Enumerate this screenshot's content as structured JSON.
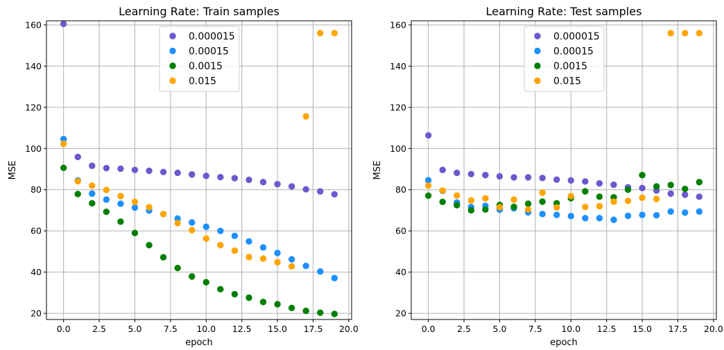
{
  "chart_data": [
    {
      "type": "scatter",
      "title": "Learning Rate: Train samples",
      "xlabel": "epoch",
      "ylabel": "MSE",
      "xlim": [
        -1.2,
        20.2
      ],
      "ylim": [
        17,
        162
      ],
      "xticks": [
        "0.0",
        "2.5",
        "5.0",
        "7.5",
        "10.0",
        "12.5",
        "15.0",
        "17.5",
        "20.0"
      ],
      "yticks": [
        "20",
        "40",
        "60",
        "80",
        "100",
        "120",
        "140",
        "160"
      ],
      "grid": true,
      "legend_position": "top-center",
      "x": [
        0,
        1,
        2,
        3,
        4,
        5,
        6,
        7,
        8,
        9,
        10,
        11,
        12,
        13,
        14,
        15,
        16,
        17,
        18,
        19
      ],
      "series": [
        {
          "name": "0.000015",
          "color": "#6a5acd",
          "values": [
            160.5,
            95.9,
            91.6,
            90.5,
            90.2,
            89.6,
            89.2,
            88.6,
            88.2,
            87.4,
            86.7,
            86.1,
            85.6,
            84.8,
            83.7,
            82.7,
            81.6,
            80.2,
            79.2,
            77.8
          ]
        },
        {
          "name": "0.00015",
          "color": "#1e90ff",
          "values": [
            104.6,
            84.5,
            78.1,
            75.2,
            73.2,
            71.3,
            69.9,
            68.2,
            66.0,
            64.1,
            62.0,
            60.0,
            57.6,
            54.9,
            52.0,
            49.3,
            46.2,
            43.0,
            40.3,
            37.1
          ]
        },
        {
          "name": "0.0015",
          "color": "#008000",
          "values": [
            90.6,
            77.9,
            73.4,
            69.3,
            64.5,
            59.0,
            53.1,
            47.2,
            42.0,
            37.9,
            35.1,
            31.7,
            29.3,
            27.6,
            25.5,
            24.4,
            22.6,
            21.2,
            20.3,
            19.7
          ]
        },
        {
          "name": "0.015",
          "color": "#ffa500",
          "values": [
            102.3,
            84.1,
            82.0,
            79.9,
            76.9,
            74.1,
            71.5,
            68.2,
            63.8,
            60.4,
            56.3,
            53.1,
            50.4,
            47.3,
            46.6,
            44.8,
            42.8,
            115.6,
            156.0,
            156.0
          ]
        }
      ]
    },
    {
      "type": "scatter",
      "title": "Learning Rate: Test samples",
      "xlabel": "epoch",
      "ylabel": "MSE",
      "xlim": [
        -1.2,
        20.2
      ],
      "ylim": [
        17,
        162
      ],
      "xticks": [
        "0.0",
        "2.5",
        "5.0",
        "7.5",
        "10.0",
        "12.5",
        "15.0",
        "17.5",
        "20.0"
      ],
      "yticks": [
        "20",
        "40",
        "60",
        "80",
        "100",
        "120",
        "140",
        "160"
      ],
      "grid": true,
      "legend_position": "top-center",
      "x": [
        0,
        1,
        2,
        3,
        4,
        5,
        6,
        7,
        8,
        9,
        10,
        11,
        12,
        13,
        14,
        15,
        16,
        17,
        18,
        19
      ],
      "series": [
        {
          "name": "0.000015",
          "color": "#6a5acd",
          "values": [
            106.4,
            89.6,
            88.2,
            87.6,
            87.1,
            86.5,
            86.0,
            86.0,
            85.7,
            84.9,
            84.5,
            84.0,
            83.1,
            82.4,
            81.2,
            80.8,
            79.6,
            78.1,
            77.6,
            76.6
          ]
        },
        {
          "name": "0.00015",
          "color": "#1e90ff",
          "values": [
            84.6,
            79.4,
            73.8,
            71.6,
            72.2,
            70.3,
            71.0,
            69.0,
            68.2,
            67.8,
            67.2,
            66.2,
            66.2,
            65.4,
            67.3,
            67.8,
            67.6,
            69.4,
            68.9,
            69.4
          ]
        },
        {
          "name": "0.0015",
          "color": "#008000",
          "values": [
            77.1,
            74.1,
            72.5,
            70.0,
            70.4,
            72.6,
            71.7,
            73.2,
            74.2,
            73.4,
            75.9,
            79.2,
            76.6,
            76.3,
            80.0,
            87.1,
            81.6,
            82.3,
            80.4,
            83.7
          ]
        },
        {
          "name": "0.015",
          "color": "#ffa500",
          "values": [
            82.0,
            79.6,
            77.2,
            74.8,
            75.8,
            71.5,
            75.2,
            70.4,
            78.6,
            71.4,
            76.9,
            71.6,
            72.0,
            74.2,
            74.6,
            76.1,
            75.5,
            156.0,
            156.0,
            156.0
          ]
        }
      ]
    }
  ]
}
